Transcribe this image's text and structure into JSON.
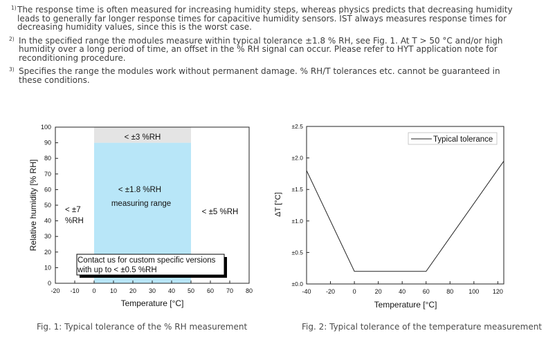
{
  "notes": [
    {
      "marker": "1)",
      "text": "The response time is often measured for increasing humidity steps, whereas physics predicts that decreasing humidity leads to generally far longer response times for capacitive humidity sensors. IST always measures response times for decreasing humidity values, since this is the worst case."
    },
    {
      "marker": "2)",
      "text": "In the specified range the modules measure within typical tolerance ±1.8 % RH, see Fig. 1. At T > 50 °C and/or high humidity over a long period of time, an offset in the % RH signal can occur. Please refer to HYT application note for reconditioning procedure."
    },
    {
      "marker": "3)",
      "text": "Specifies the range the modules work without permanent damage. % RH/T tolerances etc. cannot be guaranteed in these conditions."
    }
  ],
  "chart_data": [
    {
      "type": "area",
      "xlabel": "Temperature [°C]",
      "ylabel": "Relative humidity [% RH]",
      "xlim": [
        -20,
        80
      ],
      "ylim": [
        0,
        100
      ],
      "x_ticks": [
        -20,
        -10,
        0,
        10,
        20,
        30,
        40,
        50,
        60,
        70,
        80
      ],
      "y_ticks": [
        0,
        10,
        20,
        30,
        40,
        50,
        60,
        70,
        80,
        90,
        100
      ],
      "grid": false,
      "regions": [
        {
          "x": [
            0,
            50
          ],
          "y": [
            0,
            90
          ],
          "color": "#b8e6f8",
          "label": [
            "< ±1.8 %RH",
            "measuring range"
          ]
        },
        {
          "x": [
            0,
            50
          ],
          "y": [
            90,
            100
          ],
          "color": "#e4e4e4",
          "label": [
            "< ±3 %RH"
          ]
        }
      ],
      "annotations": [
        {
          "lines": [
            "< ±7",
            "%RH"
          ]
        },
        {
          "lines": [
            "< ±5 %RH"
          ]
        },
        {
          "lines": [
            "Contact us for custom specific versions",
            "with up to < ±0.5 %RH"
          ]
        }
      ]
    },
    {
      "type": "line",
      "xlabel": "Temperature [°C]",
      "ylabel": "ΔT [°C]",
      "xlim": [
        -40,
        125
      ],
      "ylim": [
        0,
        2.5
      ],
      "x_ticks": [
        -40,
        -20,
        0,
        20,
        40,
        60,
        80,
        100,
        120
      ],
      "y_ticks": [
        0,
        0.5,
        1.0,
        1.5,
        2.0,
        2.5
      ],
      "y_tick_labels": [
        "±0.0",
        "±0.5",
        "±1.0",
        "±1.5",
        "±2.0",
        "±2.5"
      ],
      "grid": false,
      "legend": "top-right",
      "series": [
        {
          "name": "Typical tolerance",
          "x": [
            -40,
            0,
            60,
            125
          ],
          "y": [
            1.8,
            0.2,
            0.2,
            1.95
          ]
        }
      ]
    }
  ],
  "captions": [
    "Fig. 1: Typical tolerance of the % RH measurement",
    "Fig. 2: Typical tolerance of the temperature measurement"
  ]
}
